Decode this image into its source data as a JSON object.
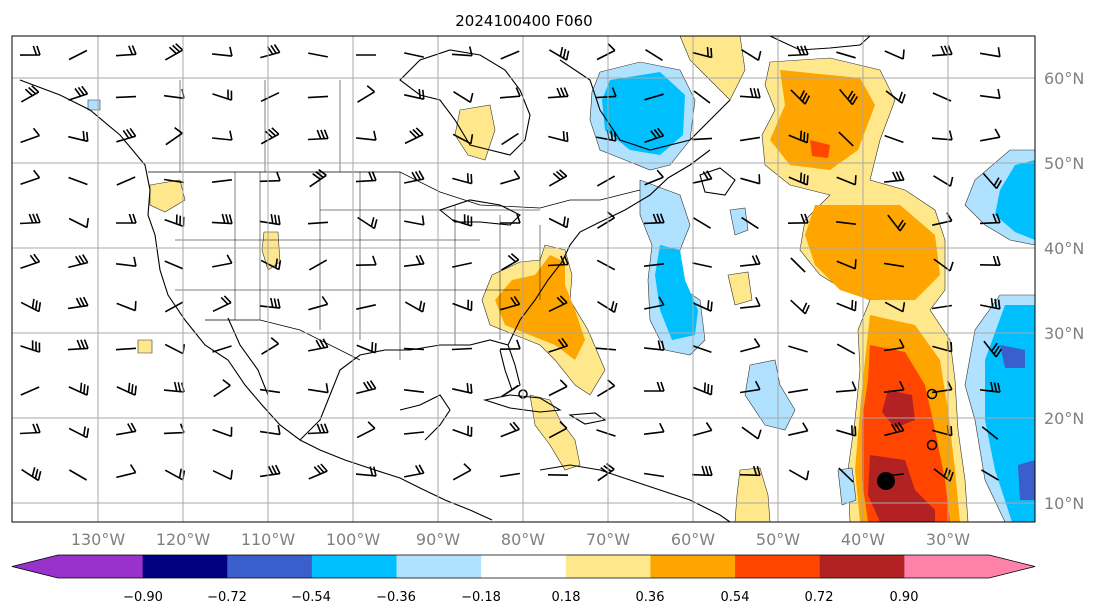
{
  "title": "2024100400 F060",
  "lon_labels": [
    "130°W",
    "120°W",
    "110°W",
    "100°W",
    "90°W",
    "80°W",
    "70°W",
    "60°W",
    "50°W",
    "40°W",
    "30°W"
  ],
  "lat_labels": [
    "60°N",
    "50°N",
    "40°N",
    "30°N",
    "20°N",
    "10°N"
  ],
  "colorbar": {
    "ticks": [
      "−0.90",
      "−0.72",
      "−0.54",
      "−0.36",
      "−0.18",
      "0.18",
      "0.36",
      "0.54",
      "0.72",
      "0.90"
    ],
    "colors": [
      "#9932cc",
      "#000080",
      "#3a5fcd",
      "#00bfff",
      "#b0e2ff",
      "#ffffff",
      "#ffe88c",
      "#ffa500",
      "#ff4500",
      "#b22222",
      "#ff82ab"
    ]
  },
  "colors": {
    "grid": "#a8a8a8",
    "coast": "#000000",
    "label_gray": "#808080"
  }
}
